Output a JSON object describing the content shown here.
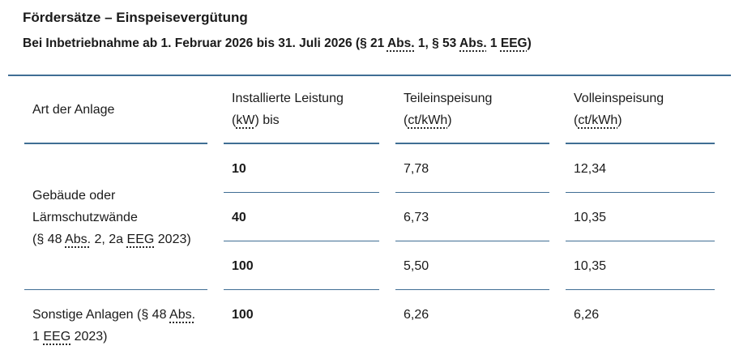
{
  "colors": {
    "accent": "#406e94",
    "text": "#1a1a1a"
  },
  "header": {
    "title": "Fördersätze – Einspeisevergütung",
    "subtitle": [
      [
        {
          "t": "Bei Inbetriebnahme ab 1. Februar 2026 bis 31. Juli 2026 (§ 21 "
        },
        {
          "t": "Abs.",
          "abbr": true
        },
        {
          "t": " 1, § 53 "
        },
        {
          "t": "Abs.",
          "abbr": true
        },
        {
          "t": " 1 "
        },
        {
          "t": "EEG",
          "abbr": true
        },
        {
          "t": ")"
        }
      ]
    ]
  },
  "table": {
    "headers": [
      [
        [
          {
            "t": "Art der Anlage"
          }
        ]
      ],
      [
        [
          {
            "t": "Installierte Leistung"
          }
        ],
        [
          {
            "t": "("
          },
          {
            "t": "kW",
            "abbr": true
          },
          {
            "t": ") bis"
          }
        ]
      ],
      [
        [
          {
            "t": "Teileinspeisung"
          }
        ],
        [
          {
            "t": "("
          },
          {
            "t": "ct/kWh",
            "abbr": true
          },
          {
            "t": ")"
          }
        ]
      ],
      [
        [
          {
            "t": "Volleinspeisung"
          }
        ],
        [
          {
            "t": "("
          },
          {
            "t": "ct/kWh",
            "abbr": true
          },
          {
            "t": ")"
          }
        ]
      ]
    ],
    "groups": [
      {
        "category": [
          [
            {
              "t": "Gebäude oder"
            }
          ],
          [
            {
              "t": "Lärmschutzwände"
            }
          ],
          [
            {
              "t": "(§ 48 "
            },
            {
              "t": "Abs.",
              "abbr": true
            },
            {
              "t": " 2, 2a "
            },
            {
              "t": "EEG",
              "abbr": true
            },
            {
              "t": " 2023)"
            }
          ]
        ],
        "rows": [
          {
            "kw": "10",
            "teil": "7,78",
            "voll": "12,34"
          },
          {
            "kw": "40",
            "teil": "6,73",
            "voll": "10,35"
          },
          {
            "kw": "100",
            "teil": "5,50",
            "voll": "10,35"
          }
        ]
      },
      {
        "category": [
          [
            {
              "t": "Sonstige Anlagen (§ 48 "
            },
            {
              "t": "Abs.",
              "abbr": true
            }
          ],
          [
            {
              "t": "1 "
            },
            {
              "t": "EEG",
              "abbr": true
            },
            {
              "t": " 2023)"
            }
          ]
        ],
        "rows": [
          {
            "kw": "100",
            "teil": "6,26",
            "voll": "6,26"
          }
        ]
      }
    ]
  }
}
